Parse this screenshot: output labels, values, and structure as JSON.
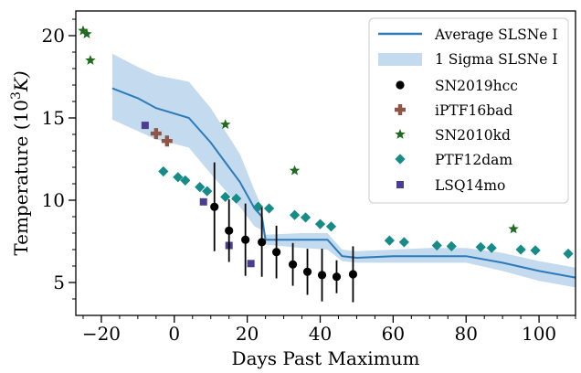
{
  "chart_data": {
    "type": "scatter",
    "xlabel": "Days Past Maximum",
    "ylabel_prefix": "Temperature (10",
    "ylabel_exp": "3",
    "ylabel_suffix": "K)",
    "xlim": [
      -27,
      110
    ],
    "ylim": [
      3,
      21.5
    ],
    "xticks": [
      -20,
      0,
      20,
      40,
      60,
      80,
      100
    ],
    "yticks": [
      5,
      10,
      15,
      20
    ],
    "legend_position": "top-right",
    "average": {
      "name": "Average SLSNe I",
      "color": "#2b7bba",
      "x": [
        -17,
        -10,
        -5,
        4,
        10,
        14,
        18,
        22,
        24,
        25,
        30,
        35,
        42,
        46,
        50,
        60,
        70,
        80,
        90,
        100,
        110
      ],
      "y": [
        16.8,
        16.2,
        15.6,
        15.0,
        13.5,
        12.3,
        11.1,
        9.5,
        9.0,
        7.6,
        7.6,
        7.6,
        7.6,
        6.6,
        6.5,
        6.6,
        6.6,
        6.6,
        6.2,
        5.7,
        5.3
      ]
    },
    "sigma": {
      "name": "1 Sigma SLSNe I",
      "color": "#c4daee",
      "x": [
        -17,
        -10,
        -5,
        4,
        10,
        14,
        18,
        22,
        24,
        25,
        30,
        35,
        42,
        46,
        50,
        60,
        70,
        80,
        90,
        100,
        110
      ],
      "upper": [
        18.9,
        18.1,
        17.6,
        17.2,
        15.6,
        14.2,
        12.8,
        10.6,
        9.6,
        7.9,
        7.95,
        8.0,
        8.0,
        7.0,
        6.9,
        7.0,
        7.1,
        7.1,
        6.8,
        6.3,
        5.9
      ],
      "lower": [
        14.9,
        14.2,
        13.7,
        13.2,
        11.6,
        10.6,
        9.6,
        8.4,
        8.2,
        7.3,
        7.2,
        7.1,
        7.0,
        6.3,
        6.2,
        6.2,
        6.2,
        6.2,
        5.7,
        5.1,
        4.7
      ]
    },
    "series": [
      {
        "name": "SN2019hcc",
        "color": "#000000",
        "marker": "circle",
        "x": [
          11,
          15,
          19.5,
          24,
          28,
          32.5,
          36.5,
          40.5,
          44.5,
          49
        ],
        "y": [
          9.6,
          8.15,
          7.6,
          7.45,
          6.85,
          6.1,
          5.65,
          5.45,
          5.35,
          5.5
        ],
        "err": [
          2.7,
          1.9,
          2.2,
          2.1,
          1.6,
          1.3,
          1.4,
          1.6,
          1.0,
          1.7
        ]
      },
      {
        "name": "iPTF16bad",
        "color": "#8c564b",
        "marker": "plus",
        "x": [
          -5,
          -2
        ],
        "y": [
          14.05,
          13.6
        ]
      },
      {
        "name": "SN2010kd",
        "color": "#1f6b1f",
        "marker": "star",
        "x": [
          -25,
          -24,
          -23,
          14,
          33,
          93
        ],
        "y": [
          20.3,
          20.1,
          18.5,
          14.6,
          11.8,
          8.25
        ]
      },
      {
        "name": "PTF12dam",
        "color": "#178b87",
        "marker": "diamond",
        "x": [
          -3,
          1,
          3,
          7,
          9,
          14,
          17,
          23,
          26,
          33,
          36,
          40,
          43,
          59,
          63,
          72,
          76,
          84,
          87,
          95,
          99,
          108
        ],
        "y": [
          11.75,
          11.4,
          11.2,
          10.8,
          10.55,
          10.2,
          10.1,
          9.6,
          9.5,
          9.1,
          8.95,
          8.55,
          8.4,
          7.55,
          7.45,
          7.25,
          7.2,
          7.15,
          7.1,
          7.0,
          6.95,
          6.75
        ]
      },
      {
        "name": "LSQ14mo",
        "color": "#4b3d8f",
        "marker": "square",
        "x": [
          -8,
          8,
          15,
          21
        ],
        "y": [
          14.55,
          9.9,
          7.25,
          6.15
        ]
      }
    ]
  }
}
